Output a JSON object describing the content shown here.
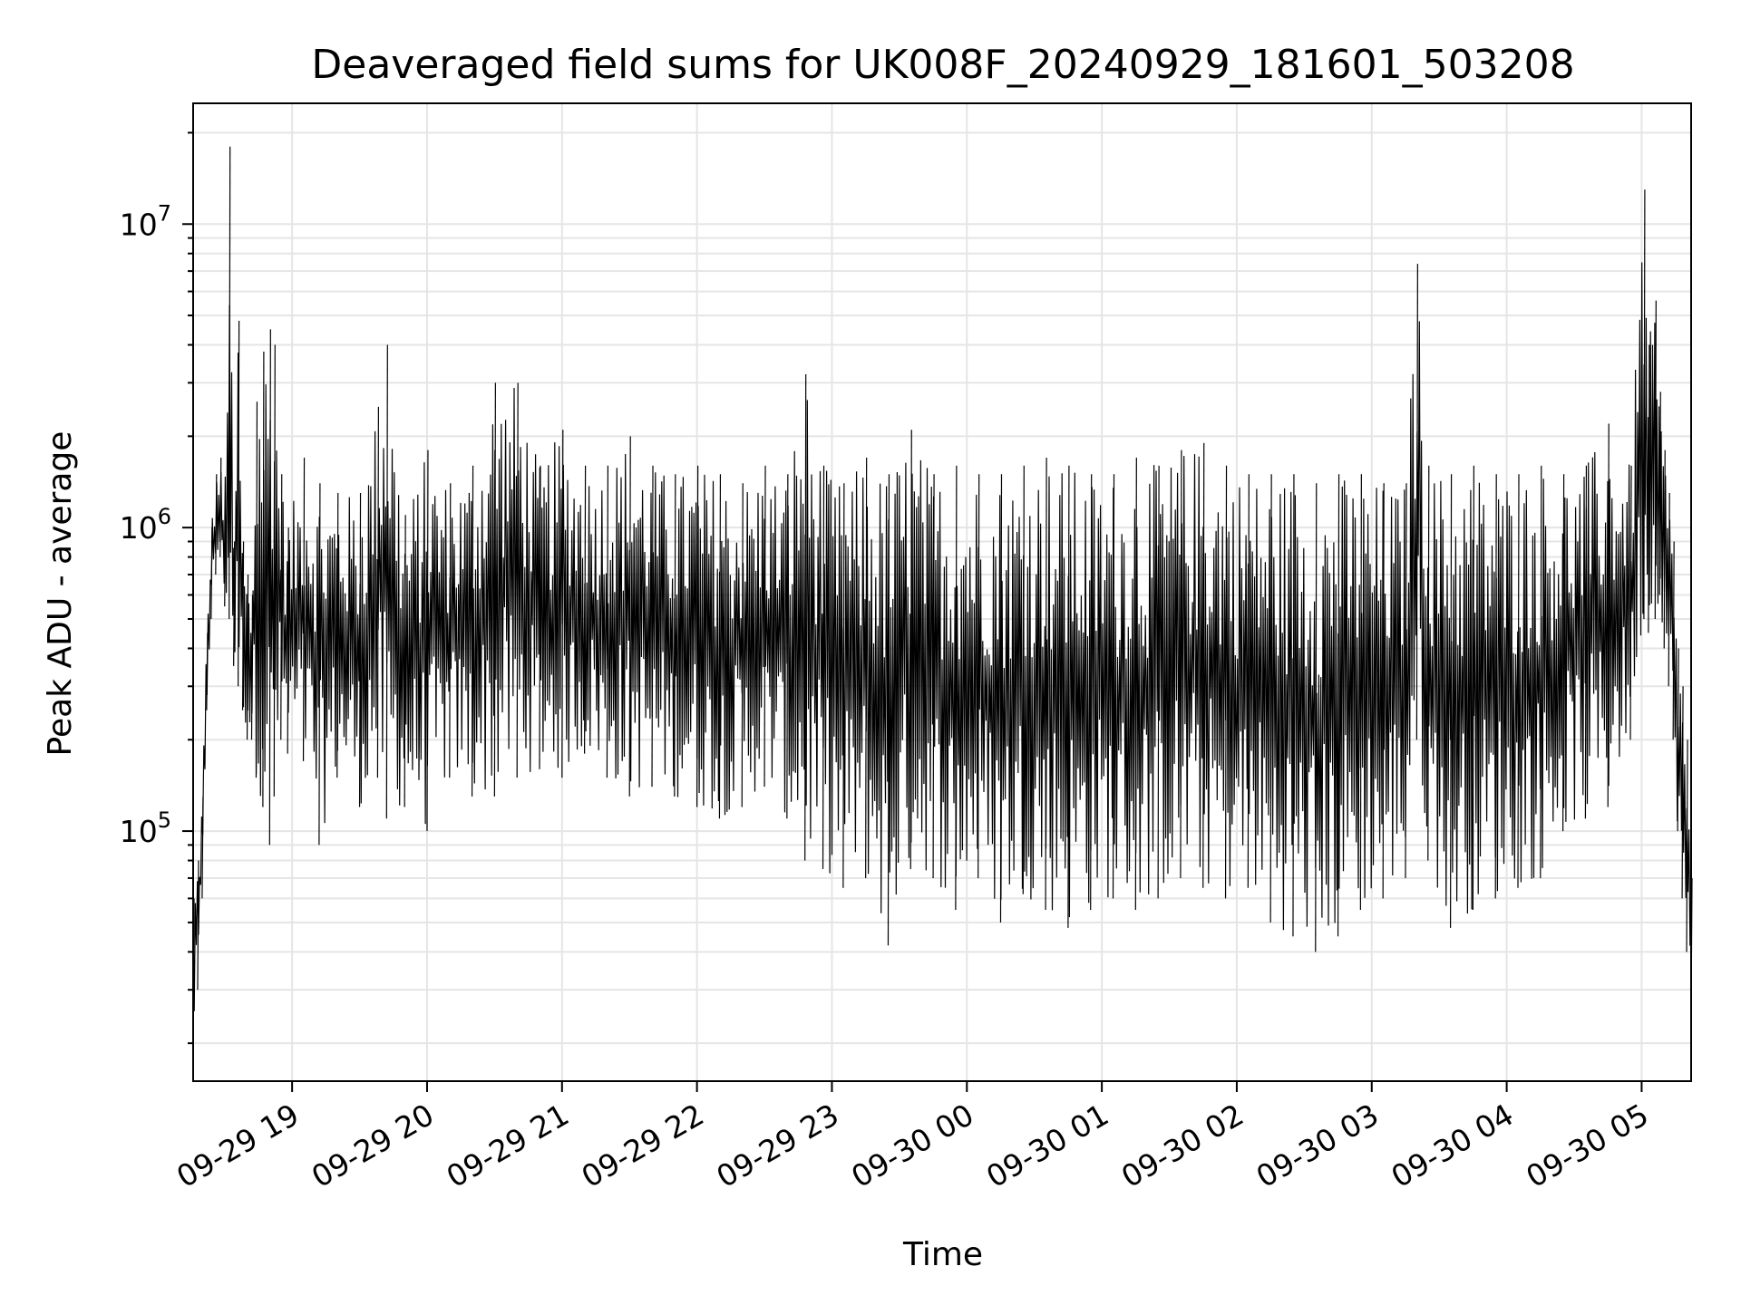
{
  "chart_data": {
    "type": "line",
    "title": "Deaveraged field sums for UK008F_20240929_181601_503208",
    "xlabel": "Time",
    "ylabel": "Peak ADU - average",
    "y_scale": "log",
    "ylim": [
      15000,
      25000000
    ],
    "xlim": [
      "2024-09-29T18:16:00",
      "2024-09-30T05:22:00"
    ],
    "grid": true,
    "grid_minor_y": true,
    "line_color": "#000000",
    "x_ticks": [
      {
        "value": "2024-09-29T19:00:00",
        "label": "09-29 19"
      },
      {
        "value": "2024-09-29T20:00:00",
        "label": "09-29 20"
      },
      {
        "value": "2024-09-29T21:00:00",
        "label": "09-29 21"
      },
      {
        "value": "2024-09-29T22:00:00",
        "label": "09-29 22"
      },
      {
        "value": "2024-09-29T23:00:00",
        "label": "09-29 23"
      },
      {
        "value": "2024-09-30T00:00:00",
        "label": "09-30 00"
      },
      {
        "value": "2024-09-30T01:00:00",
        "label": "09-30 01"
      },
      {
        "value": "2024-09-30T02:00:00",
        "label": "09-30 02"
      },
      {
        "value": "2024-09-30T03:00:00",
        "label": "09-30 03"
      },
      {
        "value": "2024-09-30T04:00:00",
        "label": "09-30 04"
      },
      {
        "value": "2024-09-30T05:00:00",
        "label": "09-30 05"
      }
    ],
    "y_ticks": [
      {
        "value": 100000,
        "base": "10",
        "exp": "5"
      },
      {
        "value": 1000000,
        "base": "10",
        "exp": "6"
      },
      {
        "value": 10000000,
        "base": "10",
        "exp": "7"
      }
    ],
    "series": [
      {
        "x": [
          "2024-09-29T18:16:00",
          "2024-09-29T18:18:00",
          "2024-09-29T18:20:00",
          "2024-09-29T18:22:00",
          "2024-09-29T18:24:00",
          "2024-09-29T18:26:00",
          "2024-09-29T18:28:00",
          "2024-09-29T18:30:00",
          "2024-09-29T18:32:00",
          "2024-09-29T18:34:00",
          "2024-09-29T18:36:00",
          "2024-09-29T18:38:00",
          "2024-09-29T18:40:00",
          "2024-09-29T18:42:00",
          "2024-09-29T18:44:00",
          "2024-09-29T18:47:00",
          "2024-09-29T18:50:00",
          "2024-09-29T18:52:00",
          "2024-09-29T18:55:00",
          "2024-09-29T18:58:00",
          "2024-09-29T19:05:00",
          "2024-09-29T19:12:00",
          "2024-09-29T19:20:00",
          "2024-09-29T19:30:00",
          "2024-09-29T19:38:00",
          "2024-09-29T19:42:00",
          "2024-09-29T19:50:00",
          "2024-09-29T20:00:00",
          "2024-09-29T20:10:00",
          "2024-09-29T20:20:00",
          "2024-09-29T20:30:00",
          "2024-09-29T20:40:00",
          "2024-09-29T20:50:00",
          "2024-09-29T21:00:00",
          "2024-09-29T21:10:00",
          "2024-09-29T21:20:00",
          "2024-09-29T21:30:00",
          "2024-09-29T21:40:00",
          "2024-09-29T21:50:00",
          "2024-09-29T22:00:00",
          "2024-09-29T22:10:00",
          "2024-09-29T22:20:00",
          "2024-09-29T22:30:00",
          "2024-09-29T22:40:00",
          "2024-09-29T22:48:00",
          "2024-09-29T22:56:00",
          "2024-09-29T23:05:00",
          "2024-09-29T23:15:00",
          "2024-09-29T23:25:00",
          "2024-09-29T23:35:00",
          "2024-09-29T23:45:00",
          "2024-09-29T23:55:00",
          "2024-09-30T00:05:00",
          "2024-09-30T00:15:00",
          "2024-09-30T00:25:00",
          "2024-09-30T00:35:00",
          "2024-09-30T00:45:00",
          "2024-09-30T00:55:00",
          "2024-09-30T01:05:00",
          "2024-09-30T01:15:00",
          "2024-09-30T01:25:00",
          "2024-09-30T01:35:00",
          "2024-09-30T01:45:00",
          "2024-09-30T01:55:00",
          "2024-09-30T02:05:00",
          "2024-09-30T02:15:00",
          "2024-09-30T02:25:00",
          "2024-09-30T02:35:00",
          "2024-09-30T02:45:00",
          "2024-09-30T02:55:00",
          "2024-09-30T03:05:00",
          "2024-09-30T03:15:00",
          "2024-09-30T03:20:00",
          "2024-09-30T03:25:00",
          "2024-09-30T03:35:00",
          "2024-09-30T03:45:00",
          "2024-09-30T03:55:00",
          "2024-09-30T04:05:00",
          "2024-09-30T04:15:00",
          "2024-09-30T04:25:00",
          "2024-09-30T04:35:00",
          "2024-09-30T04:45:00",
          "2024-09-30T04:55:00",
          "2024-09-30T05:01:00",
          "2024-09-30T05:03:00",
          "2024-09-30T05:06:00",
          "2024-09-30T05:08:00",
          "2024-09-30T05:10:00",
          "2024-09-30T05:12:00",
          "2024-09-30T05:14:00",
          "2024-09-30T05:16:00",
          "2024-09-30T05:18:00",
          "2024-09-30T05:20:00",
          "2024-09-30T05:22:00"
        ],
        "upper": [
          60000,
          80000,
          130000,
          450000,
          1000000,
          1500000,
          1700000,
          1100000,
          18000000,
          900000,
          4800000,
          900000,
          700000,
          600000,
          2600000,
          3800000,
          4500000,
          4000000,
          1500000,
          1000000,
          1700000,
          1400000,
          1300000,
          1300000,
          2500000,
          4000000,
          1100000,
          1800000,
          1400000,
          1600000,
          3000000,
          3000000,
          1600000,
          2100000,
          1600000,
          1600000,
          2000000,
          1600000,
          1500000,
          1600000,
          1500000,
          1400000,
          1600000,
          1500000,
          3200000,
          1600000,
          1400000,
          1700000,
          1500000,
          2100000,
          1500000,
          1600000,
          1500000,
          1500000,
          1600000,
          1700000,
          1600000,
          1500000,
          1500000,
          1700000,
          1600000,
          1800000,
          1900000,
          1600000,
          1500000,
          1500000,
          1500000,
          1400000,
          1500000,
          1500000,
          1400000,
          1400000,
          7400000,
          1600000,
          1500000,
          1600000,
          1500000,
          1500000,
          1600000,
          1500000,
          1600000,
          2200000,
          1600000,
          13000000,
          4000000,
          5600000,
          2800000,
          1800000,
          1300000,
          900000,
          400000,
          300000,
          200000,
          70000
        ],
        "lower": [
          20000,
          30000,
          60000,
          250000,
          500000,
          700000,
          800000,
          550000,
          500000,
          350000,
          300000,
          250000,
          200000,
          200000,
          150000,
          120000,
          90000,
          130000,
          200000,
          180000,
          170000,
          90000,
          150000,
          120000,
          150000,
          110000,
          120000,
          100000,
          150000,
          130000,
          130000,
          150000,
          160000,
          150000,
          180000,
          150000,
          130000,
          140000,
          130000,
          120000,
          110000,
          120000,
          140000,
          110000,
          80000,
          75000,
          65000,
          70000,
          42000,
          75000,
          70000,
          55000,
          70000,
          50000,
          62000,
          55000,
          48000,
          55000,
          60000,
          55000,
          60000,
          70000,
          65000,
          60000,
          65000,
          50000,
          45000,
          40000,
          45000,
          55000,
          60000,
          70000,
          200000,
          80000,
          48000,
          55000,
          60000,
          65000,
          70000,
          100000,
          110000,
          120000,
          200000,
          500000,
          450000,
          500000,
          600000,
          400000,
          300000,
          200000,
          100000,
          60000,
          40000,
          25000
        ]
      }
    ]
  }
}
